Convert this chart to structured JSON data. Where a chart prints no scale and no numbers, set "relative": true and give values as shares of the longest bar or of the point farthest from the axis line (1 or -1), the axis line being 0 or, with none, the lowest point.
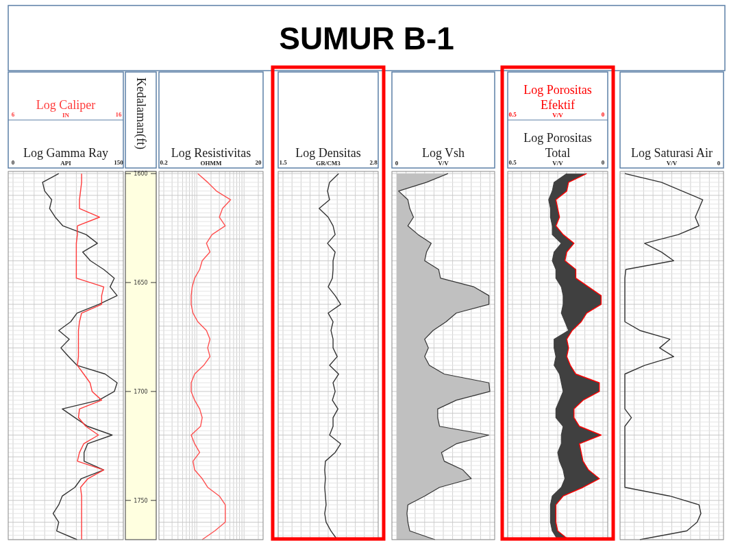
{
  "chart_data": [
    {
      "type": "other",
      "title": "SUMUR B-1"
    },
    {
      "type": "line",
      "orientation": "horizontal",
      "xlabel": "Log Gamma Ray",
      "x2label": "Log Caliper",
      "annotations": [
        "API",
        "IN"
      ],
      "xlim": [
        0,
        150
      ],
      "xticks": [
        0,
        150
      ],
      "x2lim": [
        6,
        16
      ],
      "x2ticks": [
        6,
        16
      ],
      "ylim": [
        1768,
        1599
      ],
      "tick_labels": "x",
      "grid": true,
      "x": [
        1600,
        1604,
        1608,
        1612,
        1616,
        1620,
        1624,
        1628,
        1632,
        1636,
        1640,
        1644,
        1648,
        1652,
        1656,
        1660,
        1664,
        1668,
        1672,
        1676,
        1680,
        1684,
        1688,
        1692,
        1696,
        1700,
        1704,
        1708,
        1712,
        1716,
        1720,
        1724,
        1728,
        1732,
        1736,
        1740,
        1744,
        1748,
        1752,
        1756,
        1760,
        1764,
        1768
      ],
      "series": [
        {
          "color": "#333333",
          "values": [
            65,
            42,
            45,
            55,
            52,
            60,
            71,
            104,
            120,
            99,
            110,
            129,
            144,
            138,
            148,
            122,
            91,
            82,
            65,
            80,
            68,
            79,
            91,
            131,
            148,
            144,
            122,
            70,
            88,
            106,
            141,
            106,
            101,
            101,
            129,
            97,
            88,
            70,
            65,
            57,
            65,
            62,
            91
          ]
        },
        {
          "color": "#ff3b3b",
          "axis": "x2",
          "values": [
            12.5,
            12.5,
            12.4,
            12.3,
            12.3,
            14.2,
            12.1,
            12.1,
            12.0,
            12.0,
            12.0,
            12.0,
            12.0,
            14.6,
            14.4,
            14.4,
            12.5,
            12.3,
            12.2,
            12.2,
            12.2,
            12.2,
            12.1,
            12.7,
            13.3,
            13.5,
            14.4,
            12.3,
            12.2,
            12.9,
            14.1,
            12.7,
            12.3,
            12.1,
            14.6,
            13.1,
            12.4,
            12.5,
            12.5,
            12.5,
            12.5,
            12.5,
            12.5
          ]
        }
      ]
    },
    {
      "type": "line",
      "orientation": "horizontal",
      "xlabel": "Log Resistivitas",
      "annotations": [
        "OHMM"
      ],
      "log": "x",
      "xlim": [
        0.2,
        20
      ],
      "xticks": [
        0.2,
        20
      ],
      "ylim": [
        1768,
        1599
      ],
      "yticks": [
        1600,
        1650,
        1700,
        1750
      ],
      "ylabel": "Kedalaman(ft)",
      "grid": true,
      "x": [
        1600,
        1604,
        1608,
        1612,
        1616,
        1620,
        1624,
        1628,
        1632,
        1636,
        1640,
        1644,
        1648,
        1652,
        1656,
        1660,
        1664,
        1668,
        1672,
        1676,
        1680,
        1684,
        1688,
        1692,
        1696,
        1700,
        1704,
        1708,
        1712,
        1716,
        1720,
        1724,
        1728,
        1732,
        1736,
        1740,
        1744,
        1748,
        1752,
        1756,
        1760,
        1764,
        1768
      ],
      "series": [
        {
          "color": "#ff5050",
          "values": [
            1.05,
            1.7,
            2.6,
            5.2,
            3.5,
            3.0,
            4.0,
            2.1,
            1.6,
            1.9,
            1.3,
            1.15,
            0.9,
            0.8,
            0.76,
            0.76,
            0.83,
            1.05,
            1.6,
            1.9,
            1.7,
            1.9,
            1.4,
            0.9,
            0.76,
            0.76,
            0.9,
            1.15,
            1.3,
            1.2,
            0.76,
            0.9,
            1.15,
            0.83,
            0.9,
            1.3,
            1.7,
            3.0,
            4.0,
            4.0,
            4.0,
            2.4,
            1.3
          ]
        }
      ]
    },
    {
      "type": "line",
      "orientation": "horizontal",
      "xlabel": "Log Densitas",
      "annotations": [
        "GR/CM3"
      ],
      "xlim": [
        1.5,
        2.8
      ],
      "xticks": [
        1.5,
        2.8
      ],
      "ylim": [
        1768,
        1599
      ],
      "tick_labels": "x",
      "grid": true,
      "x": [
        1600,
        1604,
        1608,
        1612,
        1616,
        1620,
        1624,
        1628,
        1632,
        1636,
        1640,
        1644,
        1648,
        1652,
        1656,
        1660,
        1664,
        1668,
        1672,
        1676,
        1680,
        1684,
        1688,
        1692,
        1696,
        1700,
        1704,
        1708,
        1712,
        1716,
        1720,
        1724,
        1728,
        1732,
        1736,
        1740,
        1744,
        1748,
        1752,
        1756,
        1760,
        1764,
        1768
      ],
      "series": [
        {
          "color": "#333333",
          "values": [
            2.3,
            2.17,
            2.14,
            2.17,
            2.02,
            2.15,
            2.22,
            2.25,
            2.14,
            2.25,
            2.22,
            2.22,
            2.21,
            2.15,
            2.25,
            2.33,
            2.15,
            2.22,
            2.19,
            2.22,
            2.22,
            2.28,
            2.17,
            2.3,
            2.22,
            2.25,
            2.21,
            2.29,
            2.22,
            2.22,
            2.17,
            2.33,
            2.25,
            2.11,
            2.1,
            2.11,
            2.1,
            2.11,
            2.12,
            2.1,
            2.12,
            2.19,
            2.28
          ]
        }
      ]
    },
    {
      "type": "area",
      "orientation": "horizontal",
      "relative": true,
      "xlabel": "Log Vsh",
      "annotations": [
        "0",
        "V/V"
      ],
      "ylim": [
        1768,
        1599
      ],
      "tick_labels": "x",
      "grid": true,
      "x": [
        1600,
        1604,
        1608,
        1612,
        1616,
        1620,
        1624,
        1628,
        1632,
        1636,
        1640,
        1644,
        1648,
        1652,
        1656,
        1660,
        1664,
        1668,
        1672,
        1676,
        1680,
        1684,
        1688,
        1692,
        1696,
        1700,
        1704,
        1708,
        1712,
        1716,
        1720,
        1724,
        1728,
        1732,
        1736,
        1740,
        1744,
        1748,
        1752,
        1756,
        1760,
        1764,
        1768
      ],
      "series": [
        {
          "color": "#c0c0c0",
          "values": [
            0.55,
            0.32,
            0.02,
            0.12,
            0.14,
            0.18,
            0.12,
            0.23,
            0.37,
            0.32,
            0.3,
            0.45,
            0.47,
            0.83,
            0.99,
            0.99,
            0.64,
            0.53,
            0.39,
            0.3,
            0.34,
            0.3,
            0.35,
            0.51,
            0.99,
            1.0,
            0.64,
            0.44,
            0.44,
            0.46,
            0.99,
            0.64,
            0.48,
            0.51,
            0.71,
            0.8,
            0.46,
            0.3,
            0.12,
            0.11,
            0.12,
            0.14,
            0.41
          ]
        }
      ]
    },
    {
      "type": "area",
      "orientation": "horizontal",
      "xlabel": "Log Porositas Total",
      "x2label": "Log Porositas Efektif",
      "annotations": [
        "V/V",
        "V/V"
      ],
      "xlim": [
        0.5,
        0
      ],
      "xticks": [
        0.5,
        0
      ],
      "x2lim": [
        0.5,
        0
      ],
      "x2ticks": [
        0.5,
        0
      ],
      "ylim": [
        1768,
        1599
      ],
      "tick_labels": "x",
      "grid": true,
      "x": [
        1600,
        1604,
        1608,
        1612,
        1616,
        1620,
        1624,
        1628,
        1632,
        1636,
        1640,
        1644,
        1648,
        1652,
        1656,
        1660,
        1664,
        1668,
        1672,
        1676,
        1680,
        1684,
        1688,
        1692,
        1696,
        1700,
        1704,
        1708,
        1712,
        1716,
        1720,
        1724,
        1728,
        1732,
        1736,
        1740,
        1744,
        1748,
        1752,
        1756,
        1760,
        1764,
        1768
      ],
      "series": [
        {
          "color": "#404040",
          "values": [
            0.2,
            0.27,
            0.28,
            0.3,
            0.29,
            0.29,
            0.28,
            0.28,
            0.23,
            0.27,
            0.28,
            0.26,
            0.26,
            0.23,
            0.22,
            0.22,
            0.23,
            0.21,
            0.19,
            0.27,
            0.27,
            0.26,
            0.27,
            0.24,
            0.23,
            0.22,
            0.24,
            0.26,
            0.26,
            0.22,
            0.23,
            0.23,
            0.25,
            0.24,
            0.22,
            0.21,
            0.23,
            0.28,
            0.29,
            0.29,
            0.29,
            0.28,
            0.25
          ]
        },
        {
          "type": "line",
          "color": "#ff0000",
          "axis": "x2",
          "values": [
            0.09,
            0.19,
            0.2,
            0.26,
            0.25,
            0.24,
            0.26,
            0.22,
            0.16,
            0.2,
            0.21,
            0.15,
            0.15,
            0.08,
            0.01,
            0.01,
            0.09,
            0.12,
            0.17,
            0.2,
            0.19,
            0.2,
            0.18,
            0.15,
            0.02,
            0.02,
            0.11,
            0.16,
            0.16,
            0.13,
            0.01,
            0.13,
            0.12,
            0.11,
            0.08,
            0.02,
            0.11,
            0.22,
            0.26,
            0.26,
            0.26,
            0.25,
            0.19
          ]
        }
      ]
    },
    {
      "type": "line",
      "orientation": "horizontal",
      "relative": true,
      "xlabel": "Log Saturasi Air",
      "annotations": [
        "0",
        "V/V"
      ],
      "ylim": [
        1768,
        1599
      ],
      "tick_labels": "x",
      "grid": true,
      "x": [
        1600,
        1604,
        1608,
        1612,
        1616,
        1620,
        1624,
        1628,
        1632,
        1636,
        1640,
        1644,
        1648,
        1652,
        1656,
        1660,
        1664,
        1668,
        1672,
        1676,
        1680,
        1684,
        1688,
        1692,
        1696,
        1700,
        1704,
        1708,
        1712,
        1716,
        1720,
        1724,
        1728,
        1732,
        1736,
        1740,
        1744,
        1748,
        1752,
        1756,
        1760,
        1764,
        1768
      ],
      "series": [
        {
          "color": "#333333",
          "values": [
            -1.0,
            -0.61,
            -0.39,
            -0.17,
            -0.21,
            -0.25,
            -0.21,
            -0.43,
            -0.79,
            -0.61,
            -0.48,
            -0.99,
            -1,
            -1,
            -1,
            -1,
            -1,
            -1,
            -0.84,
            -0.52,
            -0.63,
            -0.48,
            -0.79,
            -1,
            -1,
            -1,
            -1,
            -1,
            -0.93,
            -1,
            -1,
            -1,
            -1,
            -1,
            -1,
            -1,
            -1,
            -0.52,
            -0.21,
            -0.19,
            -0.23,
            -0.34,
            -0.84
          ]
        }
      ]
    }
  ]
}
